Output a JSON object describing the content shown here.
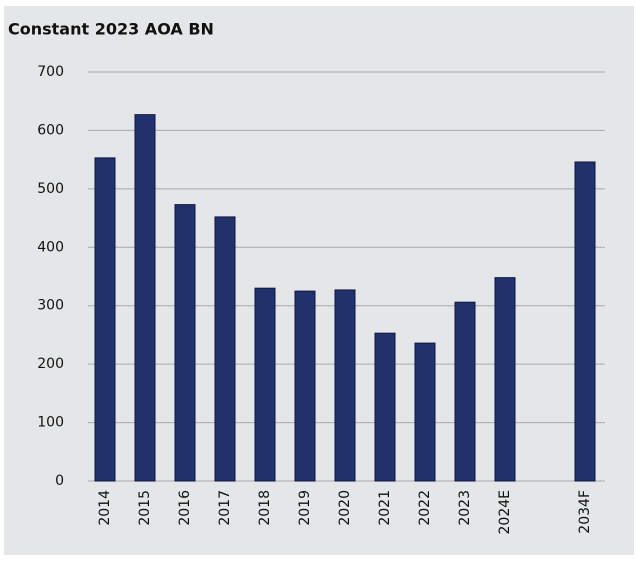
{
  "chart_data": {
    "type": "bar",
    "title": "Constant 2023 AOA BN",
    "categories": [
      "2014",
      "2015",
      "2016",
      "2017",
      "2018",
      "2019",
      "2020",
      "2021",
      "2022",
      "2023",
      "2024E",
      null,
      "2034F"
    ],
    "values": [
      553,
      627,
      473,
      452,
      330,
      325,
      327,
      253,
      236,
      306,
      348,
      null,
      546
    ],
    "color": "#22306b",
    "ylim": [
      0,
      700
    ],
    "yticks": [
      0,
      100,
      200,
      300,
      400,
      500,
      600,
      700
    ],
    "grid": true
  }
}
